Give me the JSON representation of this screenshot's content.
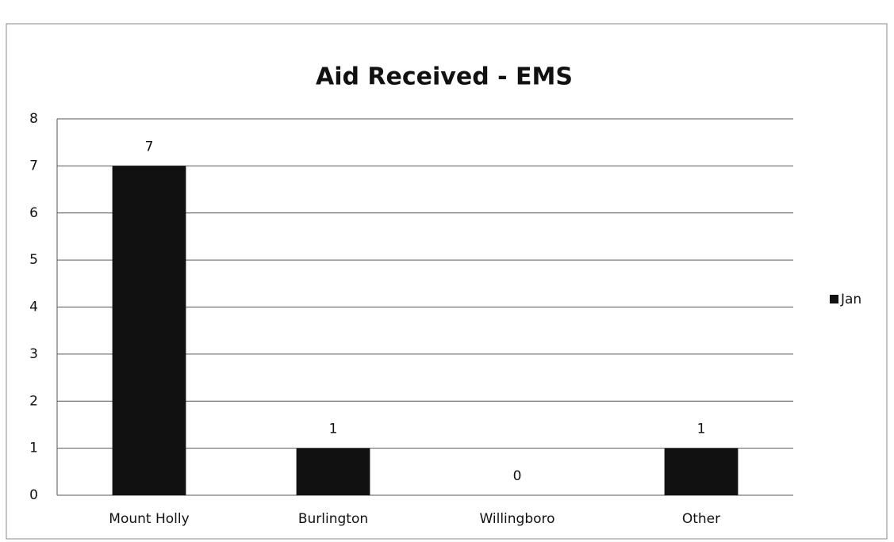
{
  "chart_data": {
    "type": "bar",
    "title": "Aid Received - EMS",
    "categories": [
      "Mount Holly",
      "Burlington",
      "Willingboro",
      "Other"
    ],
    "series": [
      {
        "name": "Jan",
        "color": "#111111",
        "values": [
          7,
          1,
          0,
          1
        ]
      }
    ],
    "ylim": [
      0,
      8
    ],
    "yticks": [
      0,
      1,
      2,
      3,
      4,
      5,
      6,
      7,
      8
    ],
    "grid": true,
    "legend": "right"
  }
}
